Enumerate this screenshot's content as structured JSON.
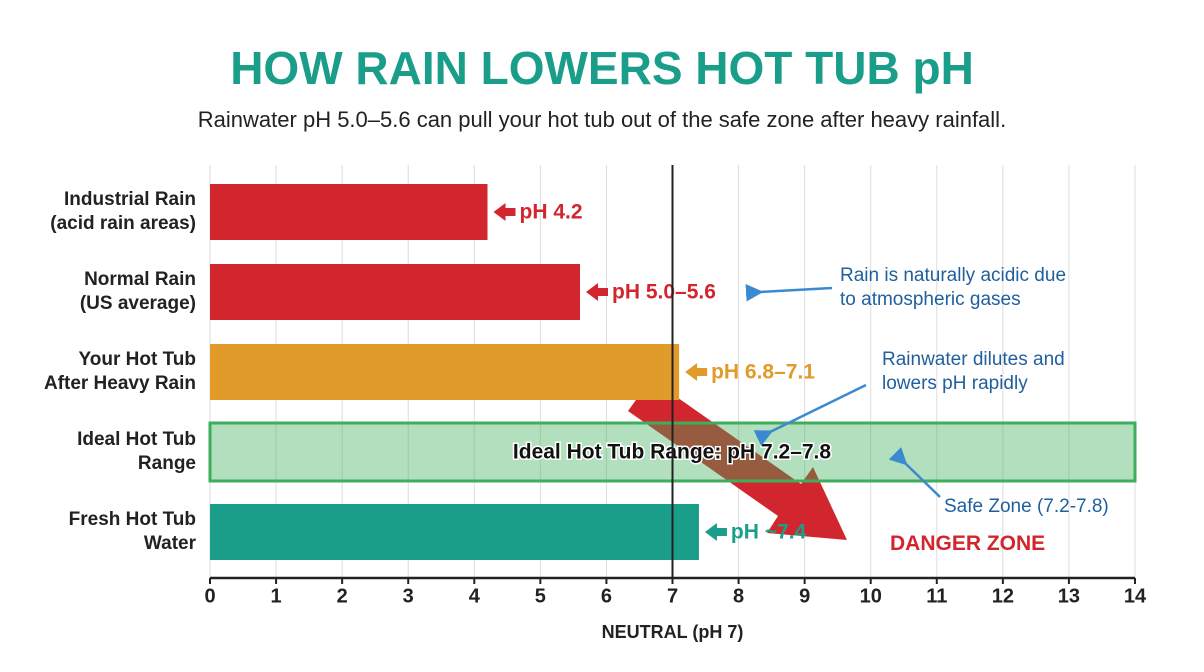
{
  "chart_data": {
    "type": "hbar",
    "title": "HOW RAIN LOWERS HOT TUB pH",
    "subtitle": "Rainwater pH 5.0–5.6 can pull your hot tub out of the safe zone after heavy rainfall.",
    "x_label": "NEUTRAL (pH 7)",
    "categories": [
      "Industrial Rain\n(acid rain areas)",
      "Normal Rain\n(US average)",
      "Your Hot Tub\nAfter Heavy Rain",
      "Ideal Hot Tub\nRange",
      "Fresh Hot Tub\nWater"
    ],
    "values": [
      4.2,
      5.6,
      7.1,
      null,
      7.4
    ],
    "value_labels": [
      "pH 4.2",
      "pH 5.0–5.6",
      "pH 6.8–7.1",
      null,
      "pH ~7.4"
    ],
    "colors": [
      "#d2262e",
      "#d2262e",
      "#e09b2a",
      null,
      "#1a9e8a"
    ],
    "band_label": "Ideal Hot Tub Range: pH 7.2–7.8",
    "band_color": "#3fae5c",
    "reference_line": 7,
    "xlim": [
      0,
      14
    ],
    "xticks": [
      0,
      1,
      2,
      3,
      4,
      5,
      6,
      7,
      8,
      9,
      10,
      11,
      12,
      13,
      14
    ],
    "grid": true,
    "annotations": [
      "Rain is naturally acidic due\nto atmospheric gases",
      "Rainwater dilutes and\nlowers pH rapidly",
      "Safe Zone (7.2-7.8)",
      "DANGER ZONE"
    ]
  }
}
